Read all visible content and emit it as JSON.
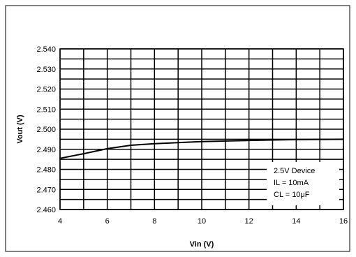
{
  "chart_data": {
    "type": "line",
    "xlabel": "Vin (V)",
    "ylabel": "Vout (V)",
    "xlim": [
      4,
      16
    ],
    "ylim": [
      2.46,
      2.54
    ],
    "x_ticks": [
      4,
      5,
      6,
      7,
      8,
      9,
      10,
      11,
      12,
      13,
      14,
      15,
      16
    ],
    "x_tick_labels": [
      "4",
      "6",
      "8",
      "10",
      "12",
      "14",
      "16"
    ],
    "x_tick_label_values": [
      4,
      6,
      8,
      10,
      12,
      14,
      16
    ],
    "y_ticks": [
      2.46,
      2.465,
      2.47,
      2.475,
      2.48,
      2.485,
      2.49,
      2.495,
      2.5,
      2.505,
      2.51,
      2.515,
      2.52,
      2.525,
      2.53,
      2.535,
      2.54
    ],
    "y_tick_labels": [
      "2.460",
      "2.470",
      "2.480",
      "2.490",
      "2.500",
      "2.510",
      "2.520",
      "2.530",
      "2.540"
    ],
    "y_tick_label_values": [
      2.46,
      2.47,
      2.48,
      2.49,
      2.5,
      2.51,
      2.52,
      2.53,
      2.54
    ],
    "grid": true,
    "series": [
      {
        "x": [
          4,
          5,
          6,
          7,
          8,
          10,
          12,
          14,
          16
        ],
        "y": [
          2.4855,
          2.4878,
          2.4903,
          2.492,
          2.4928,
          2.4938,
          2.4944,
          2.4948,
          2.495
        ]
      }
    ],
    "annotation": {
      "lines": [
        "2.5V Device",
        "IL = 10mA",
        "CL = 10μF"
      ],
      "position": "bottom-right"
    }
  }
}
